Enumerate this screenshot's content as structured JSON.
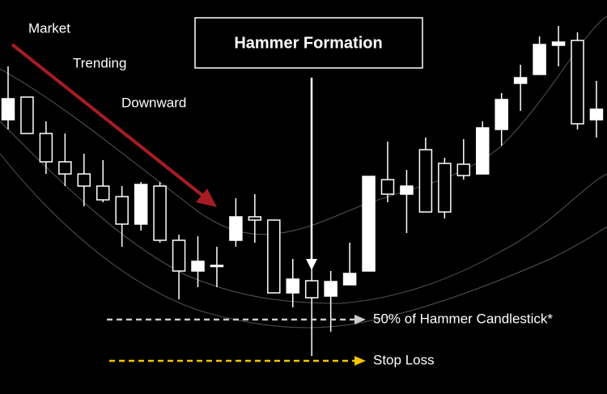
{
  "chart_data": {
    "type": "candlestick",
    "annotations": {
      "market": "Market",
      "trending": "Trending",
      "downward": "Downward",
      "hammer": "Hammer Formation",
      "half": "50% of Hammer Candlestick*",
      "stop": "Stop Loss"
    },
    "color": "#ffffff",
    "open": [
      33.9,
      36.7,
      32.2,
      28.7,
      27.2,
      25.7,
      24.4,
      21.0,
      25.7,
      19.0,
      15.2,
      15.9,
      19.0,
      21.9,
      21.5,
      12.5,
      14.0,
      12.1,
      13.5,
      15.2,
      26.5,
      24.7,
      30.2,
      28.5,
      28.4,
      27.2,
      32.7,
      38.4,
      39.5,
      43.1,
      43.7,
      33.9
    ],
    "high": [
      40.5,
      36.7,
      33.7,
      32.2,
      29.7,
      28.9,
      25.7,
      26.2,
      26.2,
      19.7,
      19.5,
      18.2,
      24.2,
      24.7,
      21.5,
      16.7,
      15.7,
      15.2,
      18.7,
      26.9,
      31.2,
      27.7,
      31.7,
      29.2,
      31.5,
      33.7,
      37.2,
      40.7,
      44.2,
      45.5,
      44.7,
      38.7
    ],
    "low": [
      32.7,
      32.2,
      27.2,
      25.7,
      23.2,
      23.7,
      18.2,
      20.2,
      18.7,
      11.7,
      13.2,
      13.2,
      18.2,
      18.7,
      12.5,
      10.7,
      4.7,
      7.7,
      13.5,
      15.2,
      23.7,
      19.9,
      22.5,
      21.7,
      26.5,
      27.2,
      30.7,
      35.0,
      39.5,
      40.5,
      32.7,
      31.7
    ],
    "close": [
      36.5,
      32.2,
      28.7,
      27.2,
      25.7,
      24.0,
      21.0,
      25.9,
      19.0,
      15.2,
      16.4,
      15.9,
      21.9,
      21.5,
      12.5,
      14.2,
      11.9,
      13.9,
      14.9,
      26.9,
      24.7,
      25.7,
      22.5,
      22.5,
      27.0,
      32.9,
      36.4,
      39.1,
      43.2,
      43.5,
      33.4,
      35.2
    ]
  }
}
